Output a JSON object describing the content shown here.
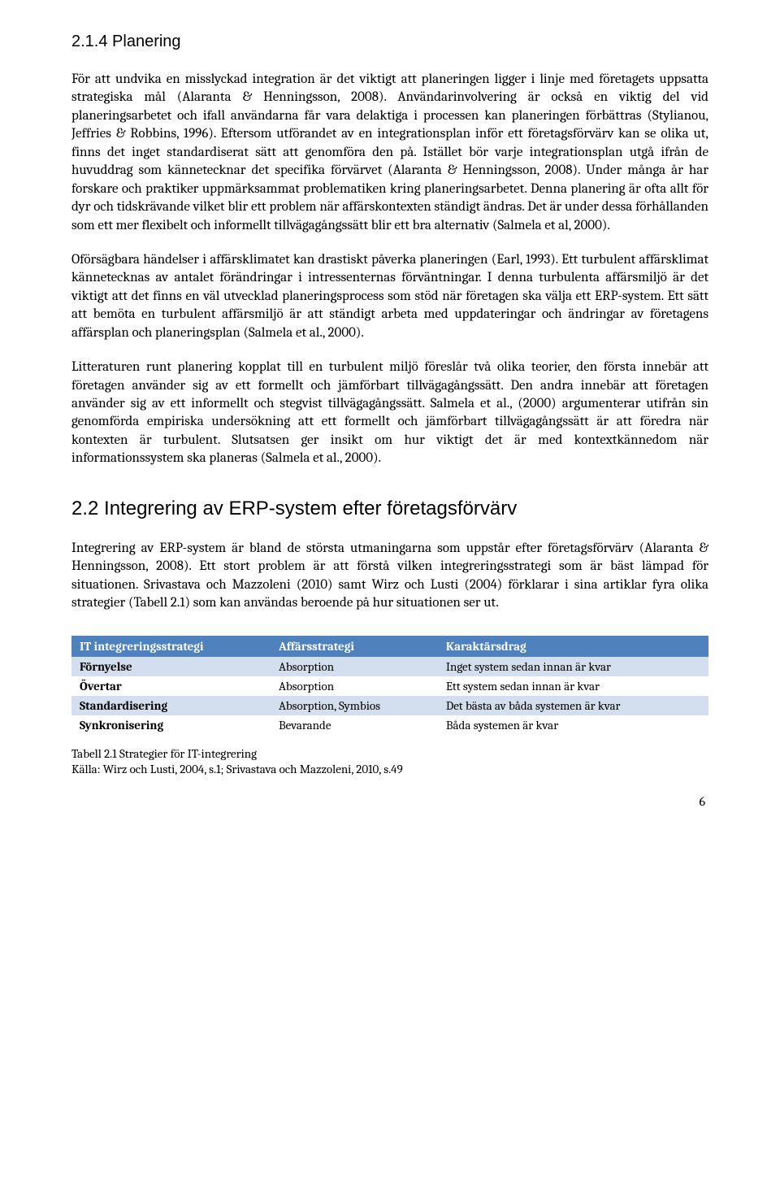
{
  "headings": {
    "h3": "2.1.4  Planering",
    "h2": "2.2 Integrering av ERP-system efter företagsförvärv"
  },
  "paragraphs": {
    "p1": "För att undvika en misslyckad integration är det viktigt att planeringen ligger i linje med företagets uppsatta strategiska mål (Alaranta & Henningsson, 2008). Användarinvolvering är också en viktig del vid planeringsarbetet och ifall användarna får vara delaktiga i processen kan planeringen förbättras (Stylianou, Jeffries & Robbins, 1996). Eftersom utförandet av en integrationsplan inför ett företagsförvärv kan se olika ut, finns det inget standardiserat sätt att genomföra den på. Istället bör varje integrationsplan utgå ifrån de huvuddrag som kännetecknar det specifika förvärvet (Alaranta & Henningsson, 2008). Under många år har forskare och praktiker uppmärksammat problematiken kring planeringsarbetet. Denna planering är ofta allt för dyr och tidskrävande vilket blir ett problem när affärskontexten ständigt ändras. Det är under dessa förhållanden som ett mer flexibelt och informellt tillvägagångssätt blir ett bra alternativ (Salmela et al, 2000).",
    "p2": "Oförsägbara händelser i affärsklimatet kan drastiskt påverka planeringen (Earl, 1993). Ett turbulent affärsklimat kännetecknas av antalet förändringar i intressenternas förväntningar. I denna turbulenta affärsmiljö är det viktigt att det finns en väl utvecklad planeringsprocess som stöd när företagen ska välja ett ERP-system. Ett sätt att bemöta en turbulent affärsmiljö är att ständigt arbeta med uppdateringar och ändringar av företagens affärsplan och planeringsplan (Salmela et al., 2000).",
    "p3": "Litteraturen runt planering kopplat till en turbulent miljö föreslår två olika teorier, den första innebär att företagen använder sig av ett formellt och jämförbart tillvägagångssätt. Den andra innebär att företagen använder sig av ett informellt och stegvist tillvägagångssätt. Salmela et al., (2000) argumenterar utifrån sin genomförda empiriska undersökning att ett formellt och jämförbart tillvägagångssätt är att föredra när kontexten är turbulent. Slutsatsen ger insikt om hur viktigt det är med kontextkännedom när informationssystem ska planeras (Salmela et al., 2000).",
    "p4": "Integrering av ERP-system är bland de största utmaningarna som uppstår efter företagsförvärv (Alaranta & Henningsson, 2008). Ett stort problem är att förstå vilken integreringsstrategi som är bäst lämpad för situationen. Srivastava och Mazzoleni (2010) samt Wirz och Lusti (2004) förklarar i sina artiklar fyra olika strategier (Tabell 2.1) som kan användas beroende på hur situationen ser ut."
  },
  "table": {
    "columns": [
      "IT integreringsstrategi",
      "Affärsstrategi",
      "Karaktärsdrag"
    ],
    "rows": [
      [
        "Förnyelse",
        "Absorption",
        "Inget system sedan innan är kvar"
      ],
      [
        "Övertar",
        "Absorption",
        "Ett system sedan innan är kvar"
      ],
      [
        "Standardisering",
        "Absorption, Symbios",
        "Det bästa av båda systemen är kvar"
      ],
      [
        "Synkronisering",
        "Bevarande",
        "Båda systemen är kvar"
      ]
    ],
    "header_bg": "#4f81bd",
    "header_color": "#ffffff",
    "row_odd_bg": "#d3dfee",
    "row_even_bg": "#ffffff"
  },
  "caption": {
    "line1": "Tabell 2.1 Strategier för IT-integrering",
    "line2": "Källa: Wirz och Lusti, 2004, s.1; Srivastava och Mazzoleni, 2010, s.49"
  },
  "page_number": "6"
}
